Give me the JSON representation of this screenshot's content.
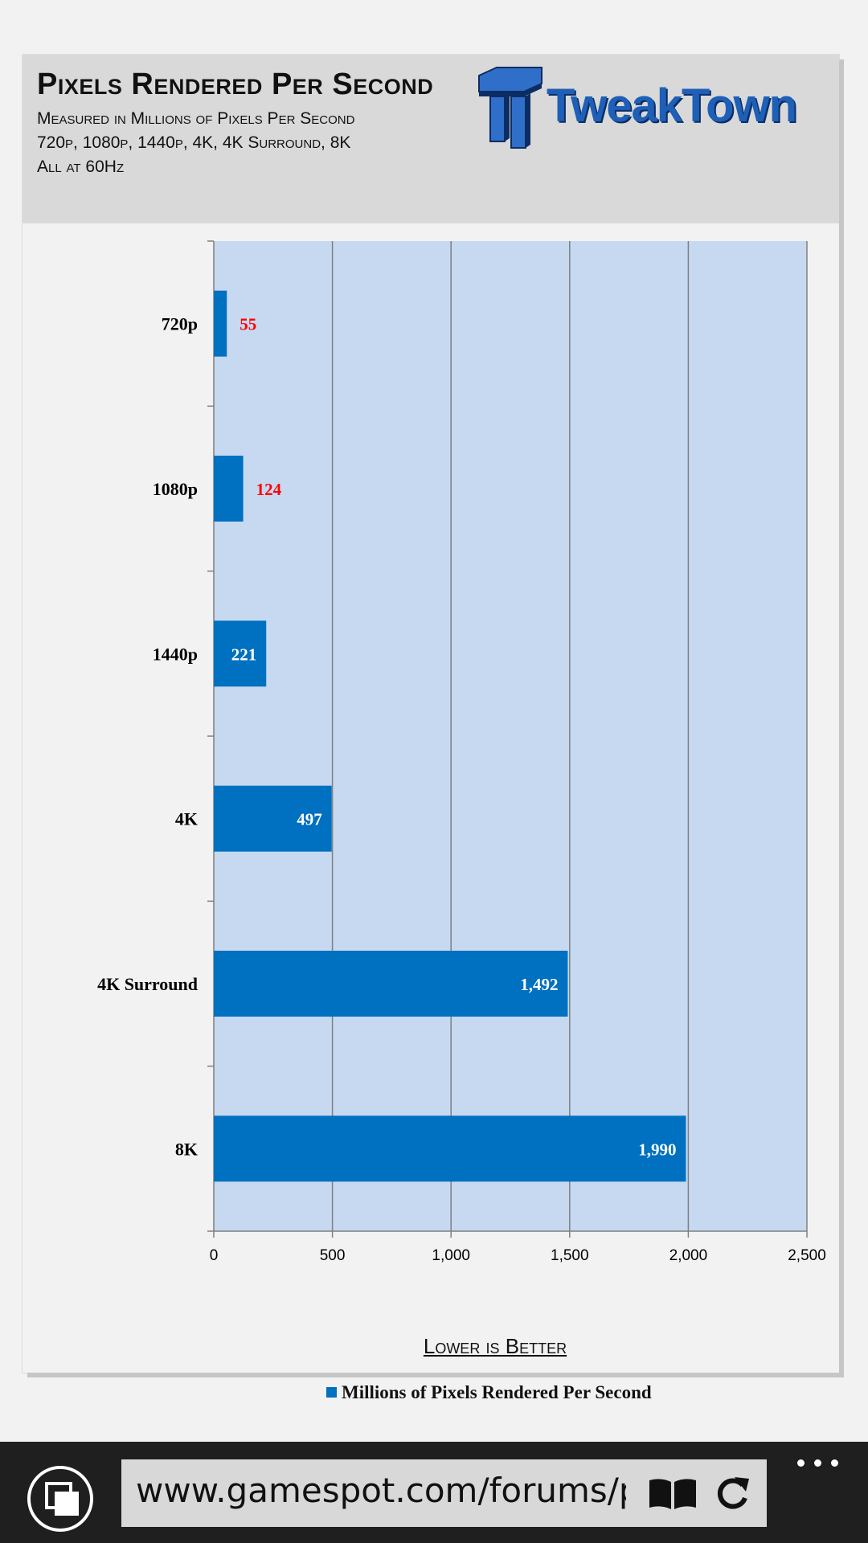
{
  "chart_title": "Pixels Rendered Per Second",
  "subtitle_lines": [
    "Measured in Millions of Pixels Per Second",
    "720p, 1080p, 1440p, 4K, 4K Surround, 8K",
    "All at 60Hz"
  ],
  "logo": {
    "text": "TweakTown"
  },
  "chart_data": {
    "type": "bar",
    "orientation": "horizontal",
    "categories": [
      "720p",
      "1080p",
      "1440p",
      "4K",
      "4K Surround",
      "8K"
    ],
    "series": [
      {
        "name": "Millions of Pixels Rendered Per Second",
        "values": [
          55,
          124,
          221,
          497,
          1492,
          1990
        ]
      }
    ],
    "data_labels": [
      "55",
      "124",
      "221",
      "497",
      "1,492",
      "1,990"
    ],
    "xlim": [
      0,
      2500
    ],
    "x_ticks": [
      0,
      500,
      1000,
      1500,
      2000,
      2500
    ],
    "x_tick_labels": [
      "0",
      "500",
      "1,000",
      "1,500",
      "2,000",
      "2,500"
    ],
    "xlabel": "Lower is Better",
    "legend_position": "bottom",
    "grid": true,
    "colors": {
      "bar": "#0070c0",
      "plot_bg": "#c6d9f1",
      "label_outside": "#ff0000",
      "label_inside": "#ffffff"
    }
  },
  "browser": {
    "url": "www.gamespot.com/forums/pc"
  },
  "icons": {
    "tabs": "tabs-icon",
    "reading_view": "reading-view-icon",
    "refresh": "refresh-icon",
    "more": "more-icon"
  }
}
